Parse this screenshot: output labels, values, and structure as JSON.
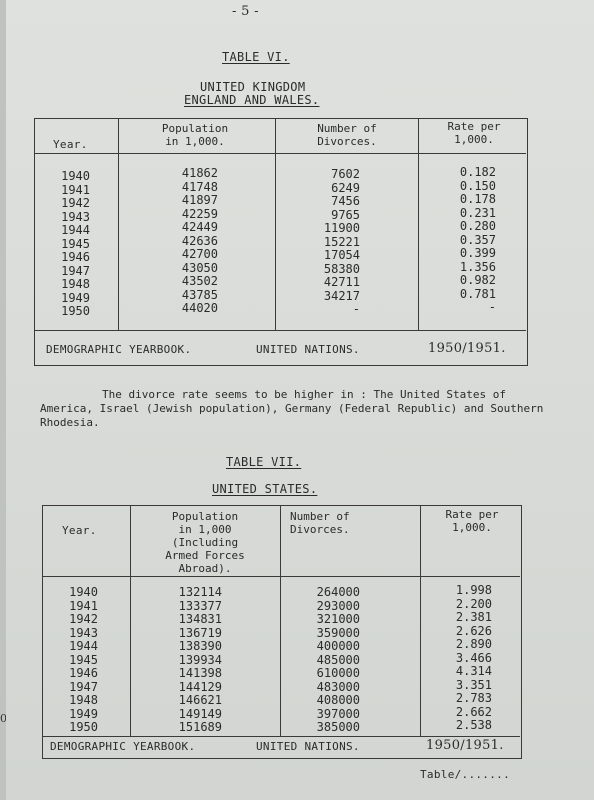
{
  "page_number": "- 5 -",
  "table6": {
    "heading": "TABLE VI.",
    "subheading1": "UNITED KINGDOM",
    "subheading2": "ENGLAND AND WALES.",
    "headers": {
      "year": "Year.",
      "pop_line1": "Population",
      "pop_line2": "in 1,000.",
      "div_line1": "Number of",
      "div_line2": "Divorces.",
      "rate_line1": "Rate per",
      "rate_line2": "1,000."
    },
    "years": [
      "1940",
      "1941",
      "1942",
      "1943",
      "1944",
      "1945",
      "1946",
      "1947",
      "1948",
      "1949",
      "1950"
    ],
    "population": [
      "41862",
      "41748",
      "41897",
      "42259",
      "42449",
      "42636",
      "42700",
      "43050",
      "43502",
      "43785",
      "44020"
    ],
    "divorces": [
      "7602",
      "6249",
      "7456",
      "9765",
      "11900",
      "15221",
      "17054",
      "58380",
      "42711",
      "34217",
      "-"
    ],
    "rates": [
      "0.182",
      "0.150",
      "0.178",
      "0.231",
      "0.280",
      "0.357",
      "0.399",
      "1.356",
      "0.982",
      "0.781",
      "-"
    ],
    "footer": {
      "source": "DEMOGRAPHIC YEARBOOK.",
      "org": "UNITED NATIONS.",
      "period": "1950/1951."
    }
  },
  "paragraph": "The divorce rate seems to be higher in : The United States of America, Israel (Jewish population), Germany (Federal Republic) and Southern Rhodesia.",
  "table7": {
    "heading": "TABLE VII.",
    "subheading": "UNITED   STATES.",
    "headers": {
      "year": "Year.",
      "pop_line1": "Population",
      "pop_line2": "in 1,000",
      "pop_line3": "(Including",
      "pop_line4": "Armed Forces",
      "pop_line5": "Abroad).",
      "div_line1": "Number of",
      "div_line2": "Divorces.",
      "rate_line1": "Rate per",
      "rate_line2": "1,000."
    },
    "years": [
      "1940",
      "1941",
      "1942",
      "1943",
      "1944",
      "1945",
      "1946",
      "1947",
      "1948",
      "1949",
      "1950"
    ],
    "population": [
      "132114",
      "133377",
      "134831",
      "136719",
      "138390",
      "139934",
      "141398",
      "144129",
      "146621",
      "149149",
      "151689"
    ],
    "divorces": [
      "264000",
      "293000",
      "321000",
      "359000",
      "400000",
      "485000",
      "610000",
      "483000",
      "408000",
      "397000",
      "385000"
    ],
    "rates": [
      "1.998",
      "2.200",
      "2.381",
      "2.626",
      "2.890",
      "3.466",
      "4.314",
      "3.351",
      "2.783",
      "2.662",
      "2.538"
    ],
    "footer": {
      "source": "DEMOGRAPHIC YEARBOOK.",
      "org": "UNITED NATIONS.",
      "period": "1950/1951."
    }
  },
  "continuation": "Table/.......",
  "edge_mark": "0."
}
